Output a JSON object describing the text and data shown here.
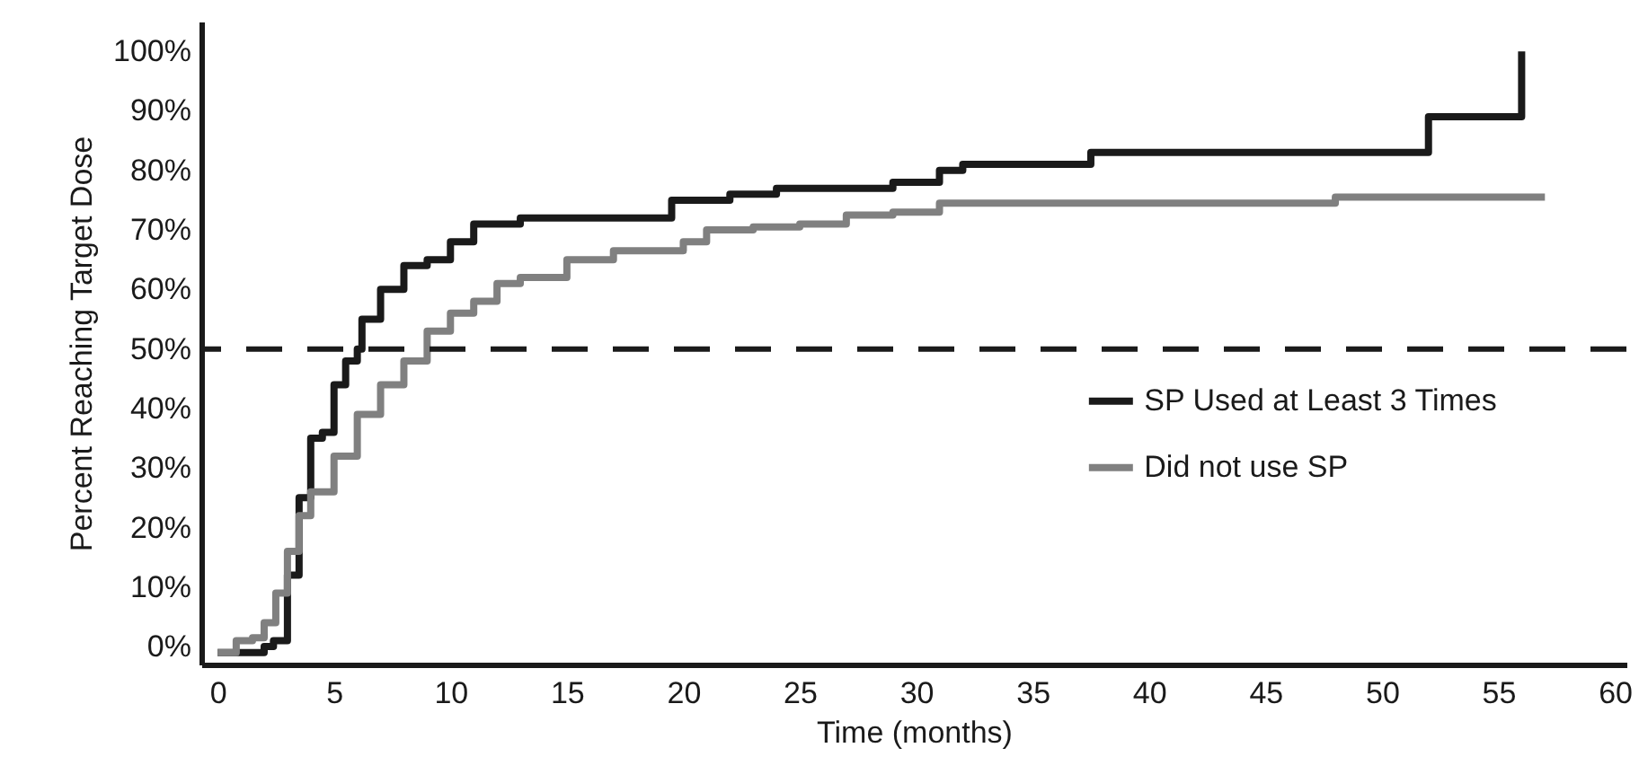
{
  "chart_data": {
    "type": "step",
    "xlabel": "Time (months)",
    "ylabel": "Percent Reaching Target Dose",
    "xlim": [
      -0.7,
      60.5
    ],
    "xticks": [
      0,
      5,
      10,
      15,
      20,
      25,
      30,
      35,
      40,
      45,
      50,
      55,
      60
    ],
    "ylim": [
      -3,
      105
    ],
    "yticks": [
      {
        "value": 0,
        "label": "0%"
      },
      {
        "value": 10,
        "label": "10%"
      },
      {
        "value": 20,
        "label": "20%"
      },
      {
        "value": 30,
        "label": "30%"
      },
      {
        "value": 40,
        "label": "40%"
      },
      {
        "value": 50,
        "label": "50%"
      },
      {
        "value": 60,
        "label": "60%"
      },
      {
        "value": 70,
        "label": "70%"
      },
      {
        "value": 80,
        "label": "80%"
      },
      {
        "value": 90,
        "label": "90%"
      },
      {
        "value": 100,
        "label": "100%"
      }
    ],
    "series": [
      {
        "name": "SP Used at Least 3 Times",
        "color": "#1a1a1a",
        "x": [
          0,
          1.5,
          2,
          2.4,
          3,
          3.5,
          4,
          4.5,
          5,
          5.5,
          6,
          6.2,
          7,
          8,
          9,
          10,
          11,
          12,
          13,
          19.5,
          21,
          22,
          24,
          29,
          31,
          32,
          37.5,
          52,
          56,
          56
        ],
        "values": [
          -1,
          -1,
          0,
          1,
          12,
          25,
          35,
          36,
          44,
          48,
          50,
          55,
          60,
          64,
          65,
          68,
          71,
          71,
          72,
          75,
          75,
          76,
          77,
          78,
          80,
          81,
          83,
          89,
          89,
          100
        ]
      },
      {
        "name": "Did not use SP",
        "color": "#808080",
        "x": [
          0,
          0.8,
          1.5,
          2,
          2.5,
          3,
          3.5,
          4,
          5,
          6,
          7,
          8,
          9,
          10,
          11,
          12,
          13,
          15,
          17,
          20,
          21,
          23,
          25,
          27,
          29,
          31,
          48,
          57
        ],
        "values": [
          -1,
          1,
          1.5,
          4,
          9,
          16,
          22,
          26,
          32,
          39,
          44,
          48,
          53,
          56,
          58,
          61,
          62,
          65,
          66.5,
          68,
          70,
          70.5,
          71,
          72.5,
          73,
          74.5,
          75.5,
          75.5
        ]
      }
    ],
    "ref_lines": [
      {
        "axis": "y",
        "value": 50,
        "line_style": "dashed",
        "color": "#1a1a1a"
      }
    ],
    "legend": "right",
    "grid": false
  }
}
